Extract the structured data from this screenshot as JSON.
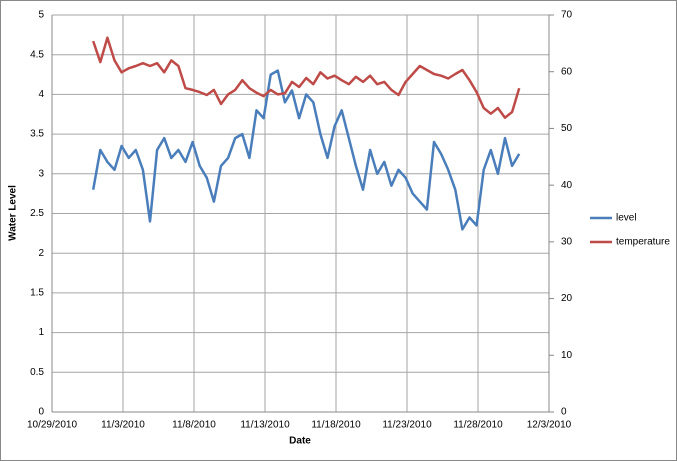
{
  "chart_data": {
    "type": "line",
    "x_label": "Date",
    "y_label": "Water Level",
    "x": [
      40482.9,
      40483.4,
      40483.9,
      40484.4,
      40484.9,
      40485.4,
      40485.9,
      40486.4,
      40486.9,
      40487.4,
      40487.9,
      40488.4,
      40488.9,
      40489.4,
      40489.9,
      40490.4,
      40490.9,
      40491.4,
      40491.9,
      40492.4,
      40492.9,
      40493.4,
      40493.9,
      40494.4,
      40494.9,
      40495.4,
      40495.9,
      40496.4,
      40496.9,
      40497.4,
      40497.9,
      40498.4,
      40498.9,
      40499.4,
      40499.9,
      40500.4,
      40500.9,
      40501.4,
      40501.9,
      40502.4,
      40502.9,
      40503.4,
      40503.9,
      40504.4,
      40504.9,
      40505.4,
      40505.9,
      40506.4,
      40506.9,
      40507.4,
      40507.9,
      40508.4,
      40508.9,
      40509.4,
      40509.9,
      40510.4,
      40510.9,
      40511.4,
      40511.9,
      40512.4,
      40512.9
    ],
    "series": [
      {
        "name": "level",
        "color": "#4a7ebb",
        "axis": "y",
        "values": [
          2.8,
          3.3,
          3.15,
          3.05,
          3.35,
          3.2,
          3.3,
          3.05,
          2.4,
          3.3,
          3.45,
          3.2,
          3.3,
          3.15,
          3.4,
          3.1,
          2.95,
          2.65,
          3.1,
          3.2,
          3.45,
          3.5,
          3.2,
          3.8,
          3.7,
          4.25,
          4.3,
          3.9,
          4.05,
          3.7,
          4.0,
          3.9,
          3.5,
          3.2,
          3.6,
          3.8,
          3.45,
          3.1,
          2.8,
          3.3,
          3.0,
          3.15,
          2.85,
          3.05,
          2.95,
          2.75,
          2.65,
          2.55,
          3.4,
          3.25,
          3.05,
          2.8,
          2.3,
          2.45,
          2.35,
          3.05,
          3.3,
          3.0,
          3.45,
          3.1,
          3.25
        ]
      },
      {
        "name": "temperature",
        "color": "#be4b48",
        "axis": "y2",
        "values": [
          65.4,
          61.7,
          66,
          62,
          59.9,
          60.6,
          61,
          61.5,
          61,
          61.5,
          59.9,
          62,
          61,
          57.1,
          56.8,
          56.4,
          55.9,
          56.8,
          54.3,
          56,
          56.8,
          58.5,
          57.1,
          56.3,
          55.7,
          56.8,
          56,
          56.2,
          58.2,
          57.3,
          58.9,
          57.8,
          59.9,
          58.8,
          59.3,
          58.5,
          57.8,
          59.1,
          58.2,
          59.3,
          57.8,
          58.2,
          56.8,
          55.9,
          58.2,
          59.6,
          61,
          60.3,
          59.6,
          59.3,
          58.8,
          59.6,
          60.3,
          58.5,
          56.4,
          53.6,
          52.6,
          53.6,
          51.9,
          52.9,
          57.1
        ]
      }
    ],
    "xlim": [
      40480,
      40515
    ],
    "xticks": [
      {
        "value": 40480,
        "label": "10/29/2010"
      },
      {
        "value": 40485,
        "label": "11/3/2010"
      },
      {
        "value": 40490,
        "label": "11/8/2010"
      },
      {
        "value": 40495,
        "label": "11/13/2010"
      },
      {
        "value": 40500,
        "label": "11/18/2010"
      },
      {
        "value": 40505,
        "label": "11/23/2010"
      },
      {
        "value": 40510,
        "label": "11/28/2010"
      },
      {
        "value": 40515,
        "label": "12/3/2010"
      }
    ],
    "ylim": [
      0,
      5
    ],
    "yticks": [
      0,
      0.5,
      1,
      1.5,
      2,
      2.5,
      3,
      3.5,
      4,
      4.5,
      5
    ],
    "y2lim": [
      0,
      70
    ],
    "y2ticks": [
      0,
      10,
      20,
      30,
      40,
      50,
      60,
      70
    ],
    "grid": true,
    "legend": "right"
  }
}
